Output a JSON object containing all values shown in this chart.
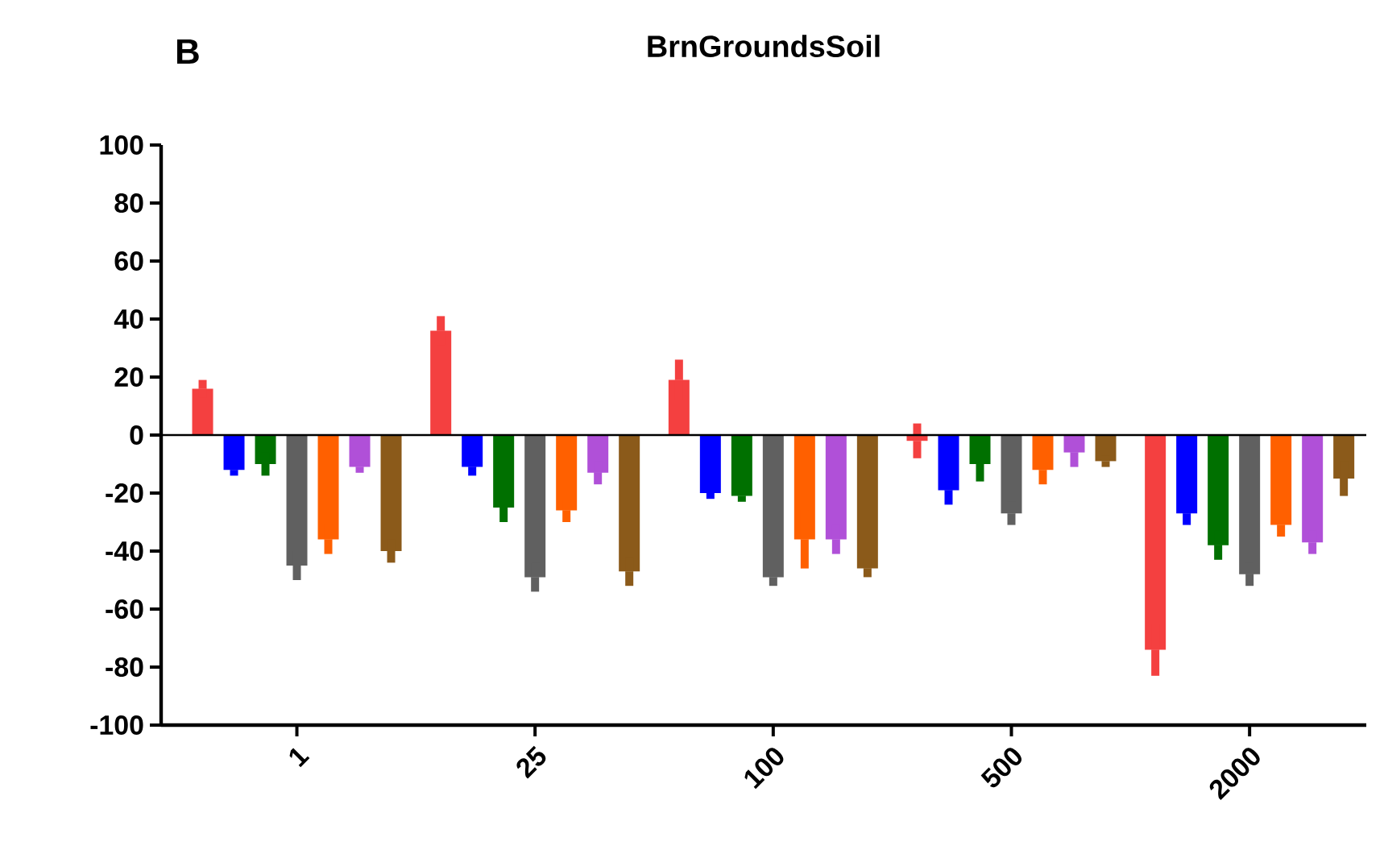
{
  "chart_data": {
    "type": "bar",
    "title": "BrnGroundsSoil",
    "annotations": [
      "B"
    ],
    "categories": [
      "1",
      "25",
      "100",
      "500",
      "2000"
    ],
    "series": [
      {
        "color": "#f44040",
        "values": [
          16,
          36,
          19,
          -2,
          -74
        ],
        "errors": [
          3,
          5,
          7,
          6,
          9
        ]
      },
      {
        "color": "#0000ff",
        "values": [
          -12,
          -11,
          -20,
          -19,
          -27
        ],
        "errors": [
          2,
          3,
          2,
          5,
          4
        ]
      },
      {
        "color": "#007000",
        "values": [
          -10,
          -25,
          -21,
          -10,
          -38
        ],
        "errors": [
          4,
          5,
          2,
          6,
          5
        ]
      },
      {
        "color": "#606060",
        "values": [
          -45,
          -49,
          -49,
          -27,
          -48
        ],
        "errors": [
          5,
          5,
          3,
          4,
          4
        ]
      },
      {
        "color": "#ff6000",
        "values": [
          -36,
          -26,
          -36,
          -12,
          -31
        ],
        "errors": [
          5,
          4,
          10,
          5,
          4
        ]
      },
      {
        "color": "#b050d8",
        "values": [
          -11,
          -13,
          -36,
          -6,
          -37
        ],
        "errors": [
          2,
          4,
          5,
          5,
          4
        ]
      },
      {
        "color": "#8b5a1a",
        "values": [
          -40,
          -47,
          -46,
          -9,
          -15
        ],
        "errors": [
          4,
          5,
          3,
          2,
          6
        ]
      }
    ],
    "ylim": [
      -100,
      100
    ],
    "yticks": [
      -100,
      -80,
      -60,
      -40,
      -20,
      0,
      20,
      40,
      60,
      80,
      100
    ],
    "ref_lines": [
      {
        "axis": "y",
        "value": 0
      }
    ],
    "grid": false
  }
}
